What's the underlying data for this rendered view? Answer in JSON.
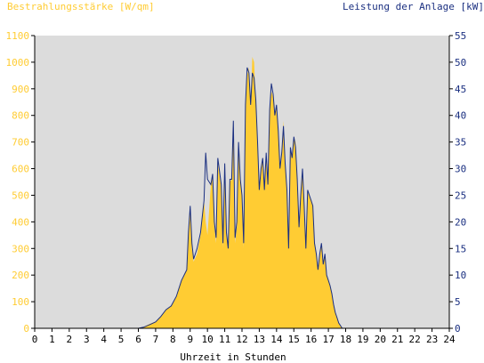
{
  "chart_data": {
    "type": "area",
    "title_left": "Bestrahlungsstärke [W/qm]",
    "title_right": "Leistung der Anlage [kW]",
    "xlabel": "Uhrzeit in Stunden",
    "xlim": [
      0,
      24
    ],
    "x_ticks": [
      "0",
      "1",
      "2",
      "3",
      "4",
      "5",
      "6",
      "7",
      "8",
      "9",
      "10",
      "11",
      "12",
      "13",
      "14",
      "15",
      "16",
      "17",
      "18",
      "19",
      "20",
      "21",
      "22",
      "23",
      "24"
    ],
    "y_left": {
      "lim": [
        0,
        1100
      ],
      "ticks": [
        "0",
        "100",
        "200",
        "300",
        "400",
        "500",
        "600",
        "700",
        "800",
        "900",
        "1000",
        "1100"
      ]
    },
    "y_right": {
      "lim": [
        0,
        55
      ],
      "ticks": [
        "0",
        "5",
        "10",
        "15",
        "20",
        "25",
        "30",
        "35",
        "40",
        "45",
        "50",
        "55"
      ]
    },
    "grid": "off",
    "colors": {
      "plot_background": "#dcdcdc",
      "irradiance_fill": "#ffcc33",
      "power_line": "#1a2f80",
      "left_axis_text": "#ffcc33",
      "right_axis_text": "#1a2f80",
      "axis_line": "#000000"
    },
    "series": [
      {
        "name": "Bestrahlungsstärke [W/qm]",
        "axis": "left",
        "style": "filled-area",
        "x": [
          0,
          6,
          6.3,
          6.6,
          7,
          7.3,
          7.6,
          7.9,
          8.2,
          8.5,
          8.8,
          8.9,
          9,
          9.1,
          9.2,
          9.4,
          9.6,
          9.8,
          9.9,
          10.0,
          10.2,
          10.3,
          10.4,
          10.5,
          10.6,
          10.8,
          10.9,
          11.0,
          11.1,
          11.2,
          11.3,
          11.4,
          11.5,
          11.6,
          11.7,
          11.8,
          11.9,
          12.0,
          12.1,
          12.2,
          12.3,
          12.4,
          12.5,
          12.6,
          12.7,
          12.8,
          12.9,
          13.0,
          13.1,
          13.2,
          13.3,
          13.4,
          13.5,
          13.6,
          13.7,
          13.8,
          13.9,
          14.0,
          14.1,
          14.2,
          14.3,
          14.4,
          14.5,
          14.6,
          14.7,
          14.8,
          14.9,
          15.0,
          15.1,
          15.2,
          15.3,
          15.4,
          15.5,
          15.6,
          15.7,
          15.8,
          15.9,
          16.0,
          16.1,
          16.2,
          16.3,
          16.4,
          16.5,
          16.6,
          16.7,
          16.8,
          16.9,
          17.0,
          17.1,
          17.2,
          17.3,
          17.4,
          17.5,
          17.6,
          17.7,
          17.8,
          17.9,
          18.0,
          18.2,
          18.4,
          18.6,
          18.8,
          19.0,
          24
        ],
        "values": [
          0,
          0,
          5,
          15,
          25,
          45,
          70,
          85,
          120,
          180,
          220,
          350,
          440,
          300,
          250,
          280,
          350,
          480,
          400,
          350,
          540,
          580,
          380,
          320,
          620,
          530,
          300,
          620,
          350,
          300,
          550,
          560,
          780,
          320,
          380,
          700,
          560,
          500,
          300,
          850,
          950,
          980,
          830,
          1020,
          1000,
          850,
          700,
          520,
          600,
          640,
          520,
          650,
          530,
          820,
          890,
          870,
          800,
          840,
          750,
          600,
          660,
          780,
          640,
          520,
          300,
          680,
          640,
          720,
          700,
          560,
          380,
          500,
          600,
          460,
          300,
          520,
          500,
          480,
          460,
          330,
          280,
          220,
          280,
          320,
          250,
          280,
          200,
          180,
          160,
          130,
          90,
          60,
          40,
          20,
          10,
          0,
          0,
          0,
          0,
          0,
          0,
          0,
          0,
          0
        ]
      },
      {
        "name": "Leistung der Anlage [kW]",
        "axis": "right",
        "style": "line",
        "x": [
          0,
          6,
          6.3,
          6.6,
          7,
          7.3,
          7.6,
          7.9,
          8.2,
          8.5,
          8.8,
          8.9,
          9,
          9.1,
          9.2,
          9.4,
          9.6,
          9.8,
          9.9,
          10.0,
          10.2,
          10.3,
          10.4,
          10.5,
          10.6,
          10.8,
          10.9,
          11.0,
          11.1,
          11.2,
          11.3,
          11.4,
          11.5,
          11.6,
          11.7,
          11.8,
          11.9,
          12.0,
          12.1,
          12.2,
          12.3,
          12.4,
          12.5,
          12.6,
          12.7,
          12.8,
          12.9,
          13.0,
          13.1,
          13.2,
          13.3,
          13.4,
          13.5,
          13.6,
          13.7,
          13.8,
          13.9,
          14.0,
          14.1,
          14.2,
          14.3,
          14.4,
          14.5,
          14.6,
          14.7,
          14.8,
          14.9,
          15.0,
          15.1,
          15.2,
          15.3,
          15.4,
          15.5,
          15.6,
          15.7,
          15.8,
          15.9,
          16.0,
          16.1,
          16.2,
          16.3,
          16.4,
          16.5,
          16.6,
          16.7,
          16.8,
          16.9,
          17.0,
          17.1,
          17.2,
          17.3,
          17.4,
          17.5,
          17.6,
          17.7,
          17.8,
          17.9,
          18.0,
          18.2,
          18.4,
          18.6,
          18.8,
          19.0,
          24
        ],
        "values": [
          0,
          0,
          0.2,
          0.6,
          1.2,
          2.2,
          3.5,
          4.2,
          6,
          9,
          11,
          18,
          23,
          16,
          13,
          15,
          18,
          24,
          33,
          28,
          27,
          29,
          20,
          17,
          32,
          27,
          16,
          31,
          18,
          15,
          28,
          28,
          39,
          17,
          20,
          35,
          28,
          25,
          16,
          42,
          49,
          48,
          42,
          48,
          47,
          43,
          35,
          26,
          30,
          32,
          26,
          33,
          27,
          41,
          46,
          44,
          40,
          42,
          37,
          30,
          33,
          38,
          31,
          26,
          15,
          34,
          32,
          36,
          34,
          28,
          19,
          25,
          30,
          23,
          15,
          26,
          25,
          24,
          23,
          16,
          14,
          11,
          14,
          16,
          12,
          14,
          10,
          9,
          8,
          6.5,
          4.5,
          3,
          2,
          1,
          0.5,
          0,
          0,
          0,
          0,
          0,
          0,
          0,
          0,
          0
        ]
      }
    ]
  }
}
